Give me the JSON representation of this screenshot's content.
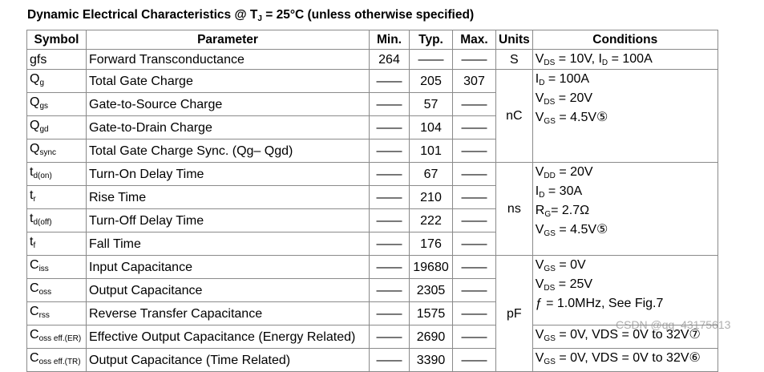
{
  "header": {
    "title": [
      "Dynamic  Electrical Characteristics @ T",
      {
        "text": "J",
        "sub": true
      },
      " = 25°C (unless otherwise specified)"
    ]
  },
  "table": {
    "columns": [
      "Symbol",
      "Parameter",
      "Min.",
      "Typ.",
      "Max.",
      "Units",
      "Conditions"
    ],
    "groups": [
      {
        "unit": "S",
        "blocks": [
          {
            "rows": [
              {
                "symbol": [
                  "gfs"
                ],
                "parameter": "Forward Transconductance",
                "min": "264",
                "typ": "——",
                "max": "——"
              }
            ],
            "conditions": [
              [
                "V",
                {
                  "text": "DS",
                  "sub": true
                },
                " = 10V, I",
                {
                  "text": "D",
                  "sub": true
                },
                " = 100A"
              ]
            ]
          }
        ]
      },
      {
        "unit": "nC",
        "blocks": [
          {
            "rows": [
              {
                "symbol": [
                  "Q",
                  {
                    "text": "g",
                    "sub": true
                  }
                ],
                "parameter": "Total Gate Charge",
                "min": "——",
                "typ": "205",
                "max": "307"
              },
              {
                "symbol": [
                  "Q",
                  {
                    "text": "gs",
                    "sub": true
                  }
                ],
                "parameter": "Gate-to-Source Charge",
                "min": "——",
                "typ": "57",
                "max": "——"
              },
              {
                "symbol": [
                  "Q",
                  {
                    "text": "gd",
                    "sub": true
                  }
                ],
                "parameter": "Gate-to-Drain Charge",
                "min": "——",
                "typ": "104",
                "max": "——"
              },
              {
                "symbol": [
                  "Q",
                  {
                    "text": "sync",
                    "sub": true
                  }
                ],
                "parameter": "Total Gate Charge Sync. (Qg– Qgd)",
                "min": "——",
                "typ": "101",
                "max": "——"
              }
            ],
            "conditions": [
              [
                "I",
                {
                  "text": "D",
                  "sub": true
                },
                " =  100A"
              ],
              [
                "V",
                {
                  "text": "DS",
                  "sub": true
                },
                " = 20V"
              ],
              [
                "V",
                {
                  "text": "GS",
                  "sub": true
                },
                " = 4.5V⑤"
              ]
            ]
          }
        ]
      },
      {
        "unit": "ns",
        "blocks": [
          {
            "rows": [
              {
                "symbol": [
                  "t",
                  {
                    "text": "d(on)",
                    "sub": true
                  }
                ],
                "parameter": "Turn-On Delay Time",
                "min": "——",
                "typ": "67",
                "max": "——"
              },
              {
                "symbol": [
                  "t",
                  {
                    "text": "r",
                    "sub": true
                  }
                ],
                "parameter": "Rise Time",
                "min": "——",
                "typ": "210",
                "max": "——"
              },
              {
                "symbol": [
                  "t",
                  {
                    "text": "d(off)",
                    "sub": true
                  }
                ],
                "parameter": "Turn-Off Delay Time",
                "min": "——",
                "typ": "222",
                "max": "——"
              },
              {
                "symbol": [
                  "t",
                  {
                    "text": "f",
                    "sub": true
                  }
                ],
                "parameter": "Fall Time",
                "min": "——",
                "typ": "176",
                "max": "——"
              }
            ],
            "conditions": [
              [
                "V",
                {
                  "text": "DD",
                  "sub": true
                },
                " = 20V"
              ],
              [
                "I",
                {
                  "text": "D",
                  "sub": true
                },
                " = 30A"
              ],
              [
                "R",
                {
                  "text": "G",
                  "sub": true
                },
                "= 2.7Ω"
              ],
              [
                "V",
                {
                  "text": "GS",
                  "sub": true
                },
                " = 4.5V⑤"
              ]
            ]
          }
        ]
      },
      {
        "unit": "pF",
        "blocks": [
          {
            "rows": [
              {
                "symbol": [
                  "C",
                  {
                    "text": "iss",
                    "sub": true
                  }
                ],
                "parameter": "Input Capacitance",
                "min": "——",
                "typ": "19680",
                "max": "——"
              },
              {
                "symbol": [
                  "C",
                  {
                    "text": "oss",
                    "sub": true
                  }
                ],
                "parameter": "Output Capacitance",
                "min": "——",
                "typ": "2305",
                "max": "——"
              },
              {
                "symbol": [
                  "C",
                  {
                    "text": "rss",
                    "sub": true
                  }
                ],
                "parameter": "Reverse Transfer Capacitance",
                "min": "——",
                "typ": "1575",
                "max": "——"
              }
            ],
            "conditions": [
              [
                "V",
                {
                  "text": "GS",
                  "sub": true
                },
                " = 0V"
              ],
              [
                "V",
                {
                  "text": "DS",
                  "sub": true
                },
                " = 25V"
              ],
              [
                "ƒ = 1.0MHz,  See Fig.7"
              ]
            ]
          },
          {
            "rows": [
              {
                "symbol": [
                  "C",
                  {
                    "text": "oss eff.(ER)",
                    "sub": true
                  }
                ],
                "parameter": "Effective Output Capacitance (Energy Related)",
                "min": "——",
                "typ": "2690",
                "max": "——"
              }
            ],
            "conditions": [
              [
                "V",
                {
                  "text": "GS",
                  "sub": true
                },
                " = 0V, VDS = 0V to 32V⑦"
              ]
            ]
          },
          {
            "rows": [
              {
                "symbol": [
                  "C",
                  {
                    "text": "oss eff.(TR)",
                    "sub": true
                  }
                ],
                "parameter": "Output Capacitance (Time Related)",
                "min": "——",
                "typ": "3390",
                "max": "——"
              }
            ],
            "conditions": [
              [
                "V",
                {
                  "text": "GS",
                  "sub": true
                },
                " = 0V, VDS = 0V to 32V⑥"
              ]
            ]
          }
        ]
      }
    ]
  },
  "watermark": "CSDN @qq_43175613"
}
